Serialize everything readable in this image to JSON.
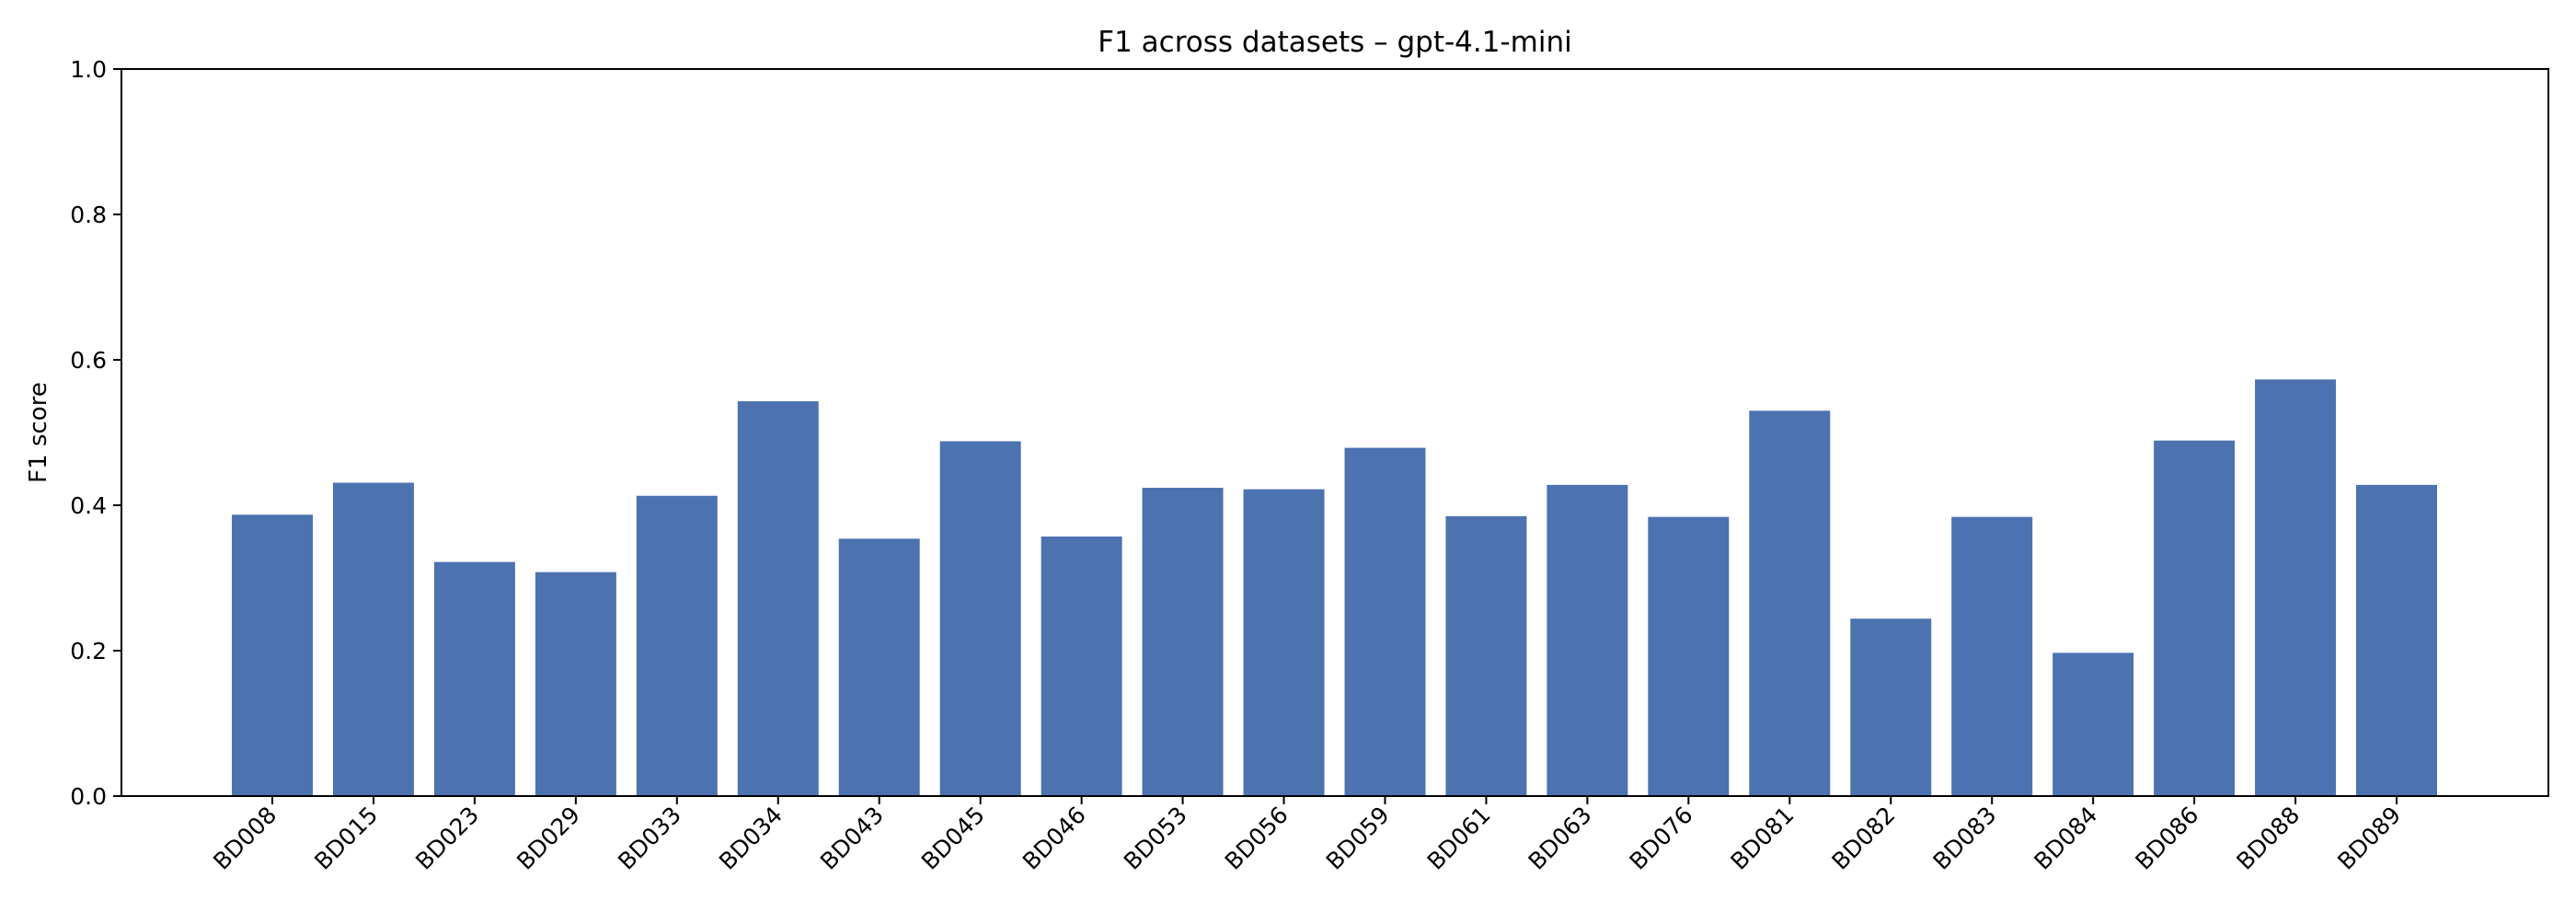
{
  "chart_data": {
    "type": "bar",
    "title": "F1 across datasets – gpt-4.1-mini",
    "xlabel": "",
    "ylabel": "F1 score",
    "ylim": [
      0,
      1.0
    ],
    "yticks": [
      "0.0",
      "0.2",
      "0.4",
      "0.6",
      "0.8",
      "1.0"
    ],
    "grid": false,
    "legend": "none",
    "bar_color": "#4c72b0",
    "categories": [
      "BD008",
      "BD015",
      "BD023",
      "BD029",
      "BD033",
      "BD034",
      "BD043",
      "BD045",
      "BD046",
      "BD053",
      "BD056",
      "BD059",
      "BD061",
      "BD063",
      "BD076",
      "BD081",
      "BD082",
      "BD083",
      "BD084",
      "BD086",
      "BD088",
      "BD089"
    ],
    "values": [
      0.387,
      0.431,
      0.322,
      0.308,
      0.413,
      0.543,
      0.354,
      0.488,
      0.357,
      0.424,
      0.422,
      0.479,
      0.385,
      0.428,
      0.384,
      0.53,
      0.244,
      0.384,
      0.197,
      0.489,
      0.573,
      0.428
    ]
  }
}
